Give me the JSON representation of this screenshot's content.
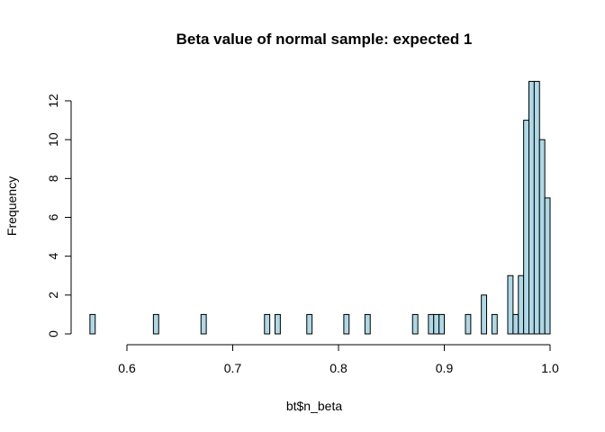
{
  "chart_data": {
    "type": "bar",
    "title": "Beta value of normal sample: expected 1",
    "xlabel": "bt$n_beta",
    "ylabel": "Frequency",
    "bin_width": 0.005,
    "xlim": [
      0.565,
      1.0
    ],
    "ylim": [
      0,
      13
    ],
    "x_ticks": [
      0.6,
      0.7,
      0.8,
      0.9,
      1.0
    ],
    "x_tick_labels": [
      "0.6",
      "0.7",
      "0.8",
      "0.9",
      "1.0"
    ],
    "y_ticks": [
      0,
      2,
      4,
      6,
      8,
      10,
      12
    ],
    "y_tick_labels": [
      "0",
      "2",
      "4",
      "6",
      "8",
      "10",
      "12"
    ],
    "bar_color": "#add8e6",
    "bin_starts": [
      0.565,
      0.57,
      0.575,
      0.58,
      0.585,
      0.59,
      0.595,
      0.6,
      0.605,
      0.61,
      0.615,
      0.62,
      0.625,
      0.63,
      0.635,
      0.64,
      0.645,
      0.65,
      0.655,
      0.66,
      0.665,
      0.67,
      0.675,
      0.68,
      0.685,
      0.69,
      0.695,
      0.7,
      0.705,
      0.71,
      0.715,
      0.72,
      0.725,
      0.73,
      0.735,
      0.74,
      0.745,
      0.75,
      0.755,
      0.76,
      0.765,
      0.77,
      0.775,
      0.78,
      0.785,
      0.79,
      0.795,
      0.8,
      0.805,
      0.81,
      0.815,
      0.82,
      0.825,
      0.83,
      0.835,
      0.84,
      0.845,
      0.85,
      0.855,
      0.86,
      0.865,
      0.87,
      0.875,
      0.88,
      0.885,
      0.89,
      0.895,
      0.9,
      0.905,
      0.91,
      0.915,
      0.92,
      0.925,
      0.93,
      0.935,
      0.94,
      0.945,
      0.95,
      0.955,
      0.96,
      0.965,
      0.97,
      0.975,
      0.98,
      0.985,
      0.99,
      0.995
    ],
    "counts": [
      1,
      0,
      0,
      0,
      0,
      0,
      0,
      0,
      0,
      0,
      0,
      0,
      1,
      0,
      0,
      0,
      0,
      0,
      0,
      0,
      0,
      1,
      0,
      0,
      0,
      0,
      0,
      0,
      0,
      0,
      0,
      0,
      0,
      1,
      0,
      1,
      0,
      0,
      0,
      0,
      0,
      1,
      0,
      0,
      0,
      0,
      0,
      0,
      1,
      0,
      0,
      0,
      1,
      0,
      0,
      0,
      0,
      0,
      0,
      0,
      0,
      1,
      0,
      0,
      1,
      1,
      1,
      0,
      0,
      0,
      0,
      1,
      0,
      0,
      2,
      0,
      1,
      0,
      0,
      3,
      1,
      3,
      11,
      13,
      13,
      10,
      7
    ]
  }
}
